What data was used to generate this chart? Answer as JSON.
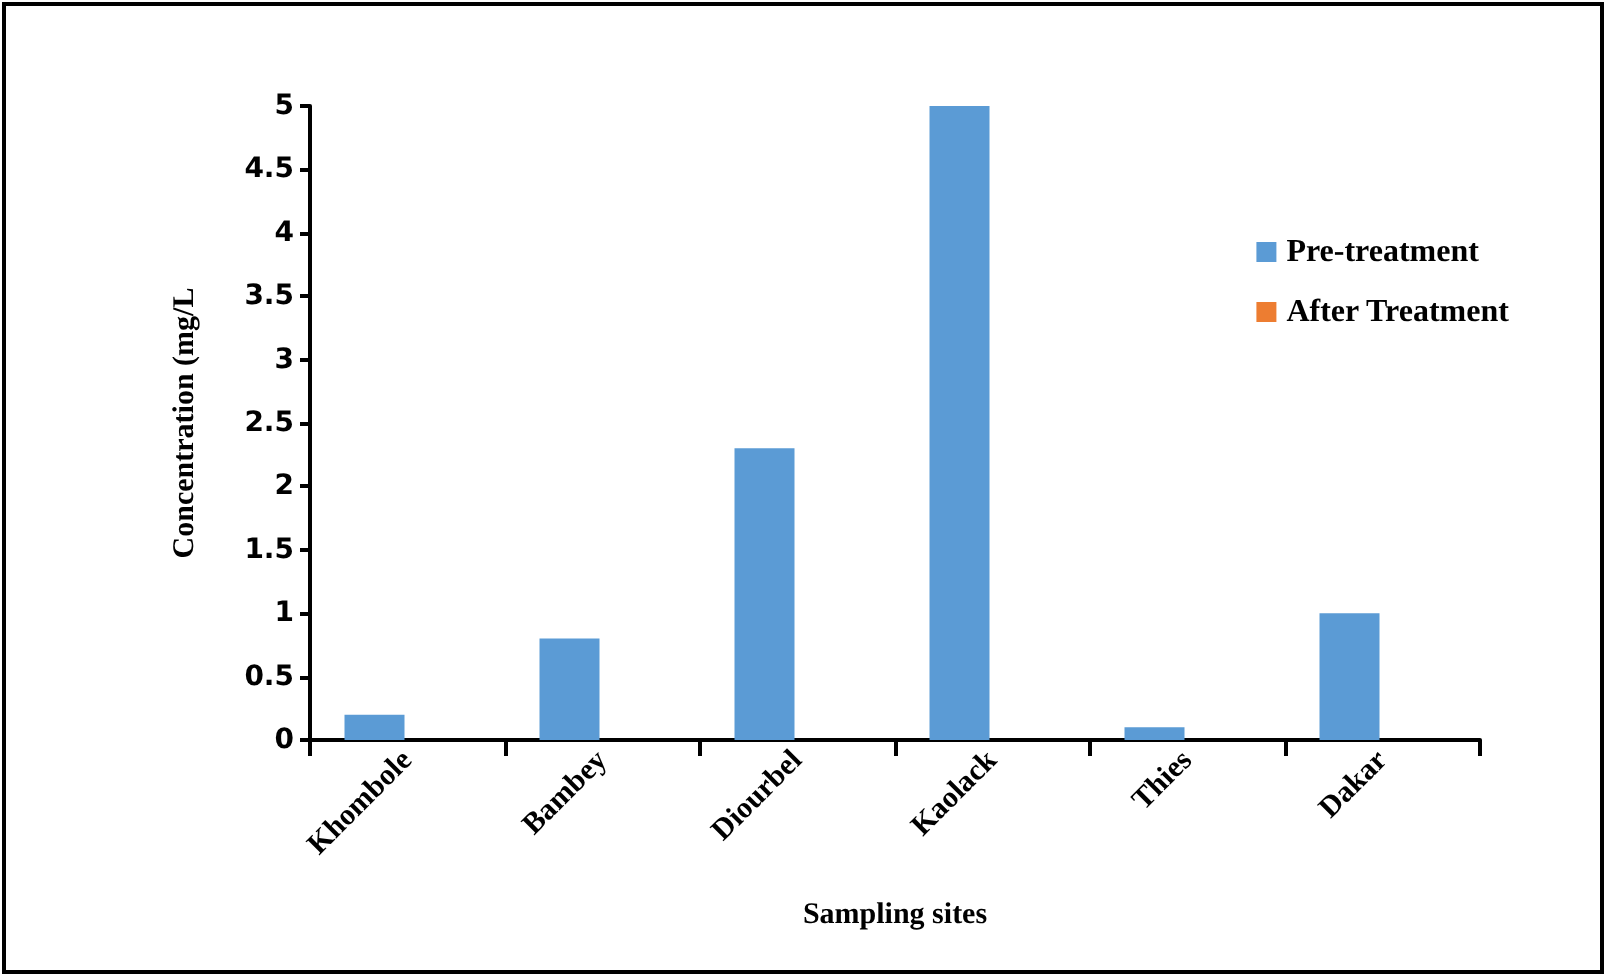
{
  "chart_data": {
    "type": "bar",
    "xlabel": "Sampling sites",
    "ylabel": "Concentration (mg/L",
    "categories": [
      "Khombole",
      "Bambey",
      "Diourbel",
      "Kaolack",
      "Thies",
      "Dakar"
    ],
    "series": [
      {
        "name": "Pre-treatment",
        "color": "#5b9bd5",
        "values": [
          0.2,
          0.8,
          2.3,
          5,
          0.1,
          1
        ]
      },
      {
        "name": "After Treatment",
        "color": "#ed7d31",
        "values": [
          0,
          0,
          0,
          0,
          0,
          0
        ]
      }
    ],
    "ylim": [
      0,
      5
    ],
    "yticks": [
      0,
      0.5,
      1,
      1.5,
      2,
      2.5,
      3,
      3.5,
      4,
      4.5,
      5
    ],
    "grid": false,
    "legend": "right"
  }
}
